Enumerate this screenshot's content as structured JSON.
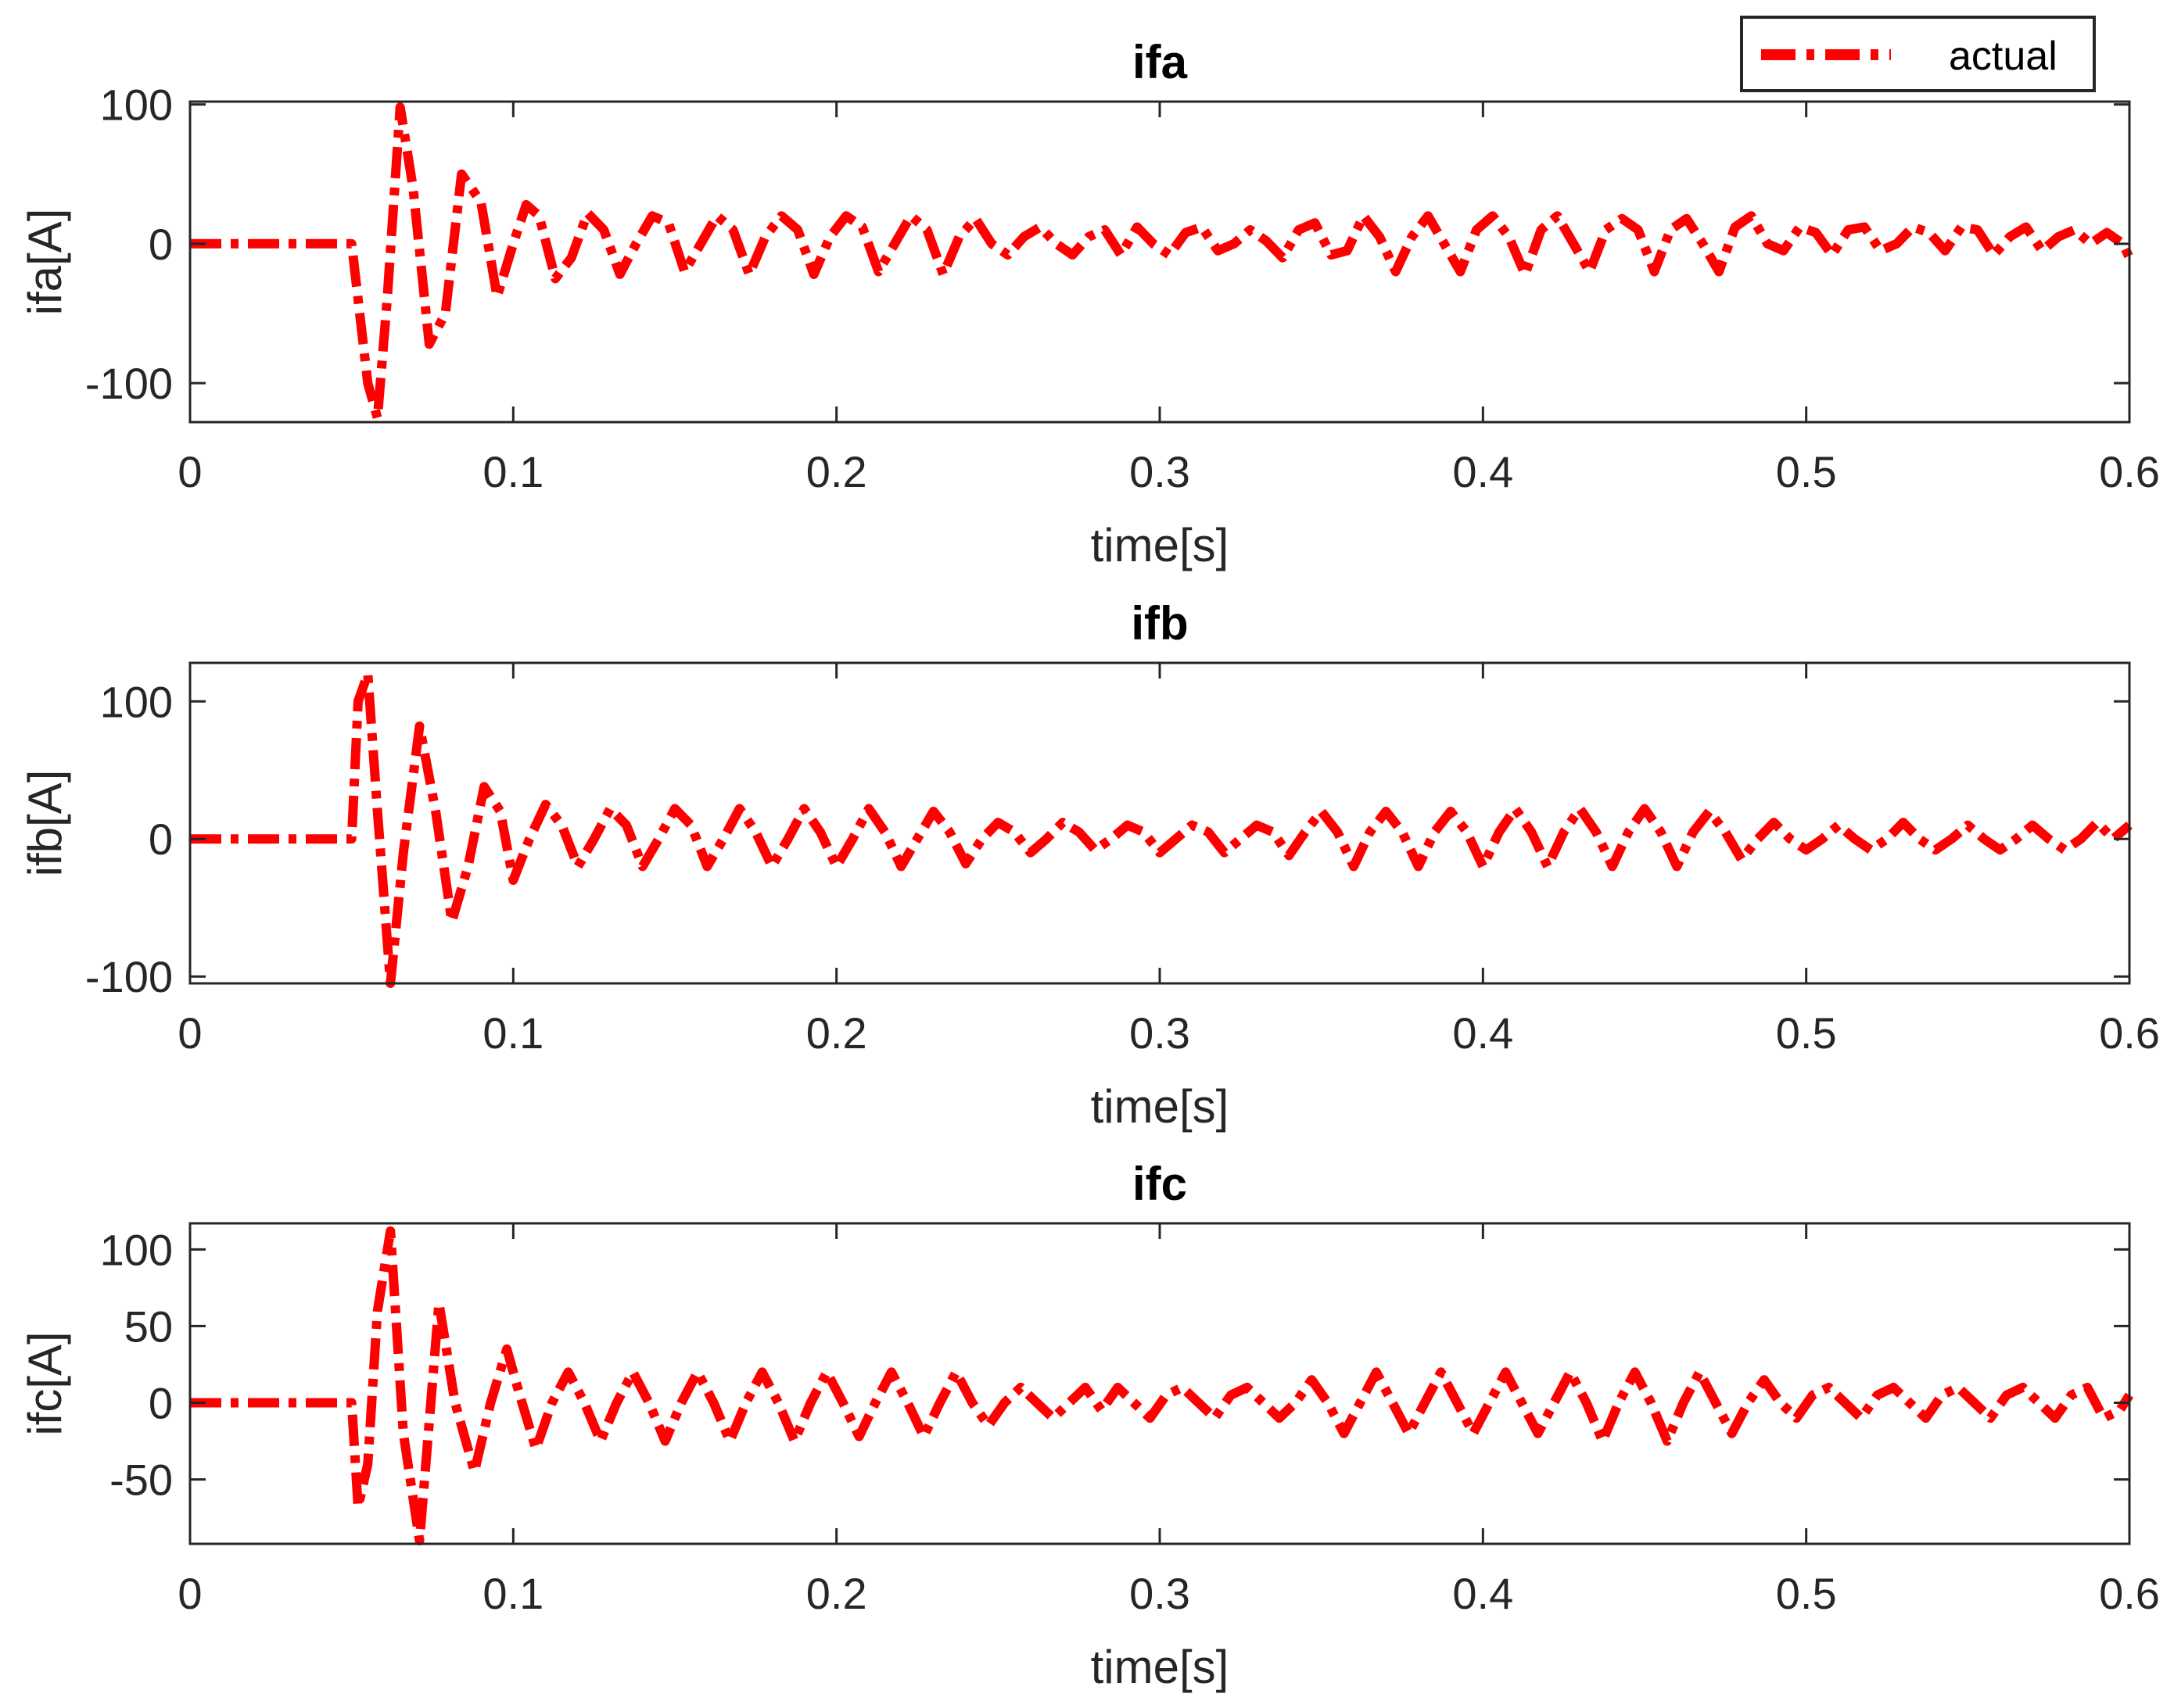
{
  "legend": {
    "label": "actual",
    "line_color": "#ff0000",
    "line_style": "dash-dot",
    "placement": "top-right"
  },
  "chart_data": [
    {
      "type": "line",
      "title": "ifa",
      "xlabel": "time[s]",
      "ylabel": "ifa[A]",
      "xlim": [
        0,
        0.6
      ],
      "ylim": [
        -128,
        102
      ],
      "xticks": [
        "0",
        "0.1",
        "0.2",
        "0.3",
        "0.4",
        "0.5",
        "0.6"
      ],
      "yticks": [
        {
          "value": 100,
          "label": "100"
        },
        {
          "value": 0,
          "label": "0"
        },
        {
          "value": -100,
          "label": "-100"
        }
      ],
      "grid": false,
      "series": [
        {
          "name": "actual",
          "color": "#ff0000",
          "x": [
            0,
            0.05,
            0.052,
            0.055,
            0.058,
            0.061,
            0.065,
            0.069,
            0.074,
            0.079,
            0.084,
            0.09,
            0.095,
            0.1,
            0.104,
            0.108,
            0.113,
            0.118,
            0.123,
            0.128,
            0.133,
            0.138,
            0.143,
            0.148,
            0.153,
            0.158,
            0.163,
            0.168,
            0.173,
            0.178,
            0.183,
            0.188,
            0.193,
            0.198,
            0.203,
            0.208,
            0.213,
            0.218,
            0.223,
            0.228,
            0.233,
            0.238,
            0.243,
            0.248,
            0.253,
            0.258,
            0.263,
            0.268,
            0.273,
            0.278,
            0.283,
            0.288,
            0.293,
            0.298,
            0.303,
            0.308,
            0.313,
            0.318,
            0.323,
            0.328,
            0.333,
            0.338,
            0.343,
            0.348,
            0.353,
            0.358,
            0.363,
            0.368,
            0.373,
            0.378,
            0.383,
            0.388,
            0.393,
            0.398,
            0.403,
            0.408,
            0.413,
            0.418,
            0.423,
            0.428,
            0.433,
            0.438,
            0.443,
            0.448,
            0.453,
            0.458,
            0.463,
            0.468,
            0.473,
            0.478,
            0.483,
            0.488,
            0.493,
            0.498,
            0.503,
            0.508,
            0.513,
            0.518,
            0.523,
            0.528,
            0.533,
            0.538,
            0.543,
            0.548,
            0.553,
            0.558,
            0.563,
            0.568,
            0.573,
            0.578,
            0.583,
            0.588,
            0.593,
            0.598,
            0.6
          ],
          "y": [
            0,
            0,
            -40,
            -100,
            -125,
            -40,
            98,
            40,
            -72,
            -50,
            50,
            30,
            -38,
            0,
            28,
            20,
            -25,
            -10,
            22,
            10,
            -22,
            0,
            20,
            15,
            -20,
            0,
            20,
            10,
            -22,
            5,
            20,
            10,
            -22,
            5,
            20,
            12,
            -20,
            0,
            20,
            10,
            -22,
            5,
            18,
            0,
            -8,
            5,
            12,
            0,
            -8,
            5,
            10,
            -8,
            12,
            0,
            -8,
            8,
            12,
            -5,
            0,
            10,
            2,
            -10,
            10,
            15,
            -8,
            -5,
            20,
            5,
            -20,
            5,
            20,
            0,
            -20,
            10,
            20,
            5,
            -22,
            10,
            20,
            0,
            -20,
            10,
            18,
            10,
            -20,
            10,
            18,
            0,
            -20,
            12,
            20,
            0,
            -5,
            12,
            8,
            -8,
            10,
            12,
            -5,
            0,
            12,
            8,
            -5,
            12,
            10,
            -8,
            5,
            12,
            -5,
            5,
            10,
            0,
            8,
            0,
            -10
          ]
        }
      ]
    },
    {
      "type": "line",
      "title": "ifb",
      "xlabel": "time[s]",
      "ylabel": "ifb[A]",
      "xlim": [
        0,
        0.6
      ],
      "ylim": [
        -105,
        128
      ],
      "xticks": [
        "0",
        "0.1",
        "0.2",
        "0.3",
        "0.4",
        "0.5",
        "0.6"
      ],
      "yticks": [
        {
          "value": 100,
          "label": "100"
        },
        {
          "value": 0,
          "label": "0"
        },
        {
          "value": -100,
          "label": "-100"
        }
      ],
      "grid": false,
      "series": [
        {
          "name": "actual",
          "color": "#ff0000",
          "x": [
            0,
            0.05,
            0.052,
            0.055,
            0.058,
            0.062,
            0.066,
            0.071,
            0.076,
            0.081,
            0.086,
            0.091,
            0.096,
            0.1,
            0.105,
            0.11,
            0.115,
            0.12,
            0.125,
            0.13,
            0.135,
            0.14,
            0.145,
            0.15,
            0.155,
            0.16,
            0.165,
            0.17,
            0.175,
            0.18,
            0.185,
            0.19,
            0.195,
            0.2,
            0.205,
            0.21,
            0.215,
            0.22,
            0.225,
            0.23,
            0.235,
            0.24,
            0.245,
            0.25,
            0.255,
            0.26,
            0.265,
            0.27,
            0.275,
            0.28,
            0.285,
            0.29,
            0.295,
            0.3,
            0.305,
            0.31,
            0.315,
            0.32,
            0.325,
            0.33,
            0.335,
            0.34,
            0.345,
            0.35,
            0.355,
            0.36,
            0.365,
            0.37,
            0.375,
            0.38,
            0.385,
            0.39,
            0.395,
            0.4,
            0.405,
            0.41,
            0.415,
            0.42,
            0.425,
            0.43,
            0.435,
            0.44,
            0.445,
            0.45,
            0.455,
            0.46,
            0.465,
            0.47,
            0.475,
            0.48,
            0.485,
            0.49,
            0.495,
            0.5,
            0.505,
            0.51,
            0.515,
            0.52,
            0.525,
            0.53,
            0.535,
            0.54,
            0.545,
            0.55,
            0.555,
            0.56,
            0.565,
            0.57,
            0.575,
            0.58,
            0.585,
            0.59,
            0.595,
            0.6
          ],
          "y": [
            0,
            0,
            100,
            120,
            20,
            -105,
            -10,
            82,
            20,
            -60,
            -20,
            38,
            20,
            -30,
            0,
            25,
            10,
            -20,
            0,
            22,
            10,
            -20,
            0,
            22,
            10,
            -20,
            0,
            22,
            5,
            -20,
            0,
            22,
            5,
            -20,
            0,
            22,
            5,
            -20,
            0,
            20,
            5,
            -18,
            0,
            12,
            5,
            -10,
            0,
            12,
            5,
            -8,
            0,
            10,
            5,
            -10,
            0,
            10,
            5,
            -10,
            0,
            10,
            5,
            -12,
            5,
            20,
            5,
            -20,
            5,
            20,
            5,
            -20,
            5,
            20,
            5,
            -20,
            5,
            22,
            5,
            -20,
            5,
            22,
            5,
            -20,
            5,
            22,
            5,
            -20,
            5,
            20,
            5,
            -15,
            0,
            12,
            0,
            -8,
            0,
            10,
            0,
            -8,
            0,
            12,
            0,
            -8,
            0,
            10,
            0,
            -8,
            0,
            10,
            0,
            -8,
            0,
            12,
            0,
            10
          ]
        }
      ]
    },
    {
      "type": "line",
      "title": "ifc",
      "xlabel": "time[s]",
      "ylabel": "ifc[A]",
      "xlim": [
        0,
        0.6
      ],
      "ylim": [
        -92,
        117
      ],
      "xticks": [
        "0",
        "0.1",
        "0.2",
        "0.3",
        "0.4",
        "0.5",
        "0.6"
      ],
      "yticks": [
        {
          "value": 100,
          "label": "100"
        },
        {
          "value": 50,
          "label": "50"
        },
        {
          "value": 0,
          "label": "0"
        },
        {
          "value": -50,
          "label": "-50"
        }
      ],
      "grid": false,
      "series": [
        {
          "name": "actual",
          "color": "#ff0000",
          "x": [
            0,
            0.05,
            0.052,
            0.055,
            0.058,
            0.062,
            0.066,
            0.071,
            0.077,
            0.082,
            0.088,
            0.093,
            0.098,
            0.102,
            0.107,
            0.112,
            0.117,
            0.122,
            0.127,
            0.132,
            0.137,
            0.142,
            0.147,
            0.152,
            0.157,
            0.162,
            0.167,
            0.172,
            0.177,
            0.182,
            0.187,
            0.192,
            0.197,
            0.202,
            0.207,
            0.212,
            0.217,
            0.222,
            0.227,
            0.232,
            0.237,
            0.242,
            0.247,
            0.252,
            0.257,
            0.262,
            0.267,
            0.272,
            0.277,
            0.282,
            0.287,
            0.292,
            0.297,
            0.302,
            0.307,
            0.312,
            0.317,
            0.322,
            0.327,
            0.332,
            0.337,
            0.342,
            0.347,
            0.352,
            0.357,
            0.362,
            0.367,
            0.372,
            0.377,
            0.382,
            0.387,
            0.392,
            0.397,
            0.402,
            0.407,
            0.412,
            0.417,
            0.422,
            0.427,
            0.432,
            0.437,
            0.442,
            0.447,
            0.452,
            0.457,
            0.462,
            0.467,
            0.472,
            0.477,
            0.482,
            0.487,
            0.492,
            0.497,
            0.502,
            0.507,
            0.512,
            0.517,
            0.522,
            0.527,
            0.532,
            0.537,
            0.542,
            0.547,
            0.552,
            0.557,
            0.562,
            0.567,
            0.572,
            0.577,
            0.582,
            0.587,
            0.592,
            0.597,
            0.6
          ],
          "y": [
            0,
            0,
            -68,
            -40,
            60,
            112,
            -20,
            -90,
            65,
            0,
            -45,
            0,
            35,
            5,
            -30,
            0,
            20,
            0,
            -25,
            0,
            20,
            0,
            -25,
            0,
            20,
            0,
            -25,
            0,
            20,
            0,
            -25,
            0,
            20,
            0,
            -22,
            0,
            20,
            0,
            -22,
            0,
            20,
            0,
            -15,
            0,
            10,
            0,
            -10,
            0,
            10,
            -5,
            10,
            0,
            -10,
            5,
            10,
            0,
            -10,
            5,
            10,
            0,
            -10,
            0,
            15,
            0,
            -20,
            0,
            20,
            0,
            -20,
            0,
            20,
            0,
            -20,
            0,
            20,
            0,
            -20,
            0,
            20,
            0,
            -25,
            0,
            20,
            0,
            -25,
            0,
            20,
            0,
            -20,
            0,
            15,
            0,
            -10,
            5,
            10,
            0,
            -10,
            5,
            10,
            0,
            -10,
            5,
            10,
            0,
            -10,
            5,
            10,
            0,
            -10,
            5,
            10,
            -10,
            -5,
            5
          ]
        }
      ]
    }
  ]
}
